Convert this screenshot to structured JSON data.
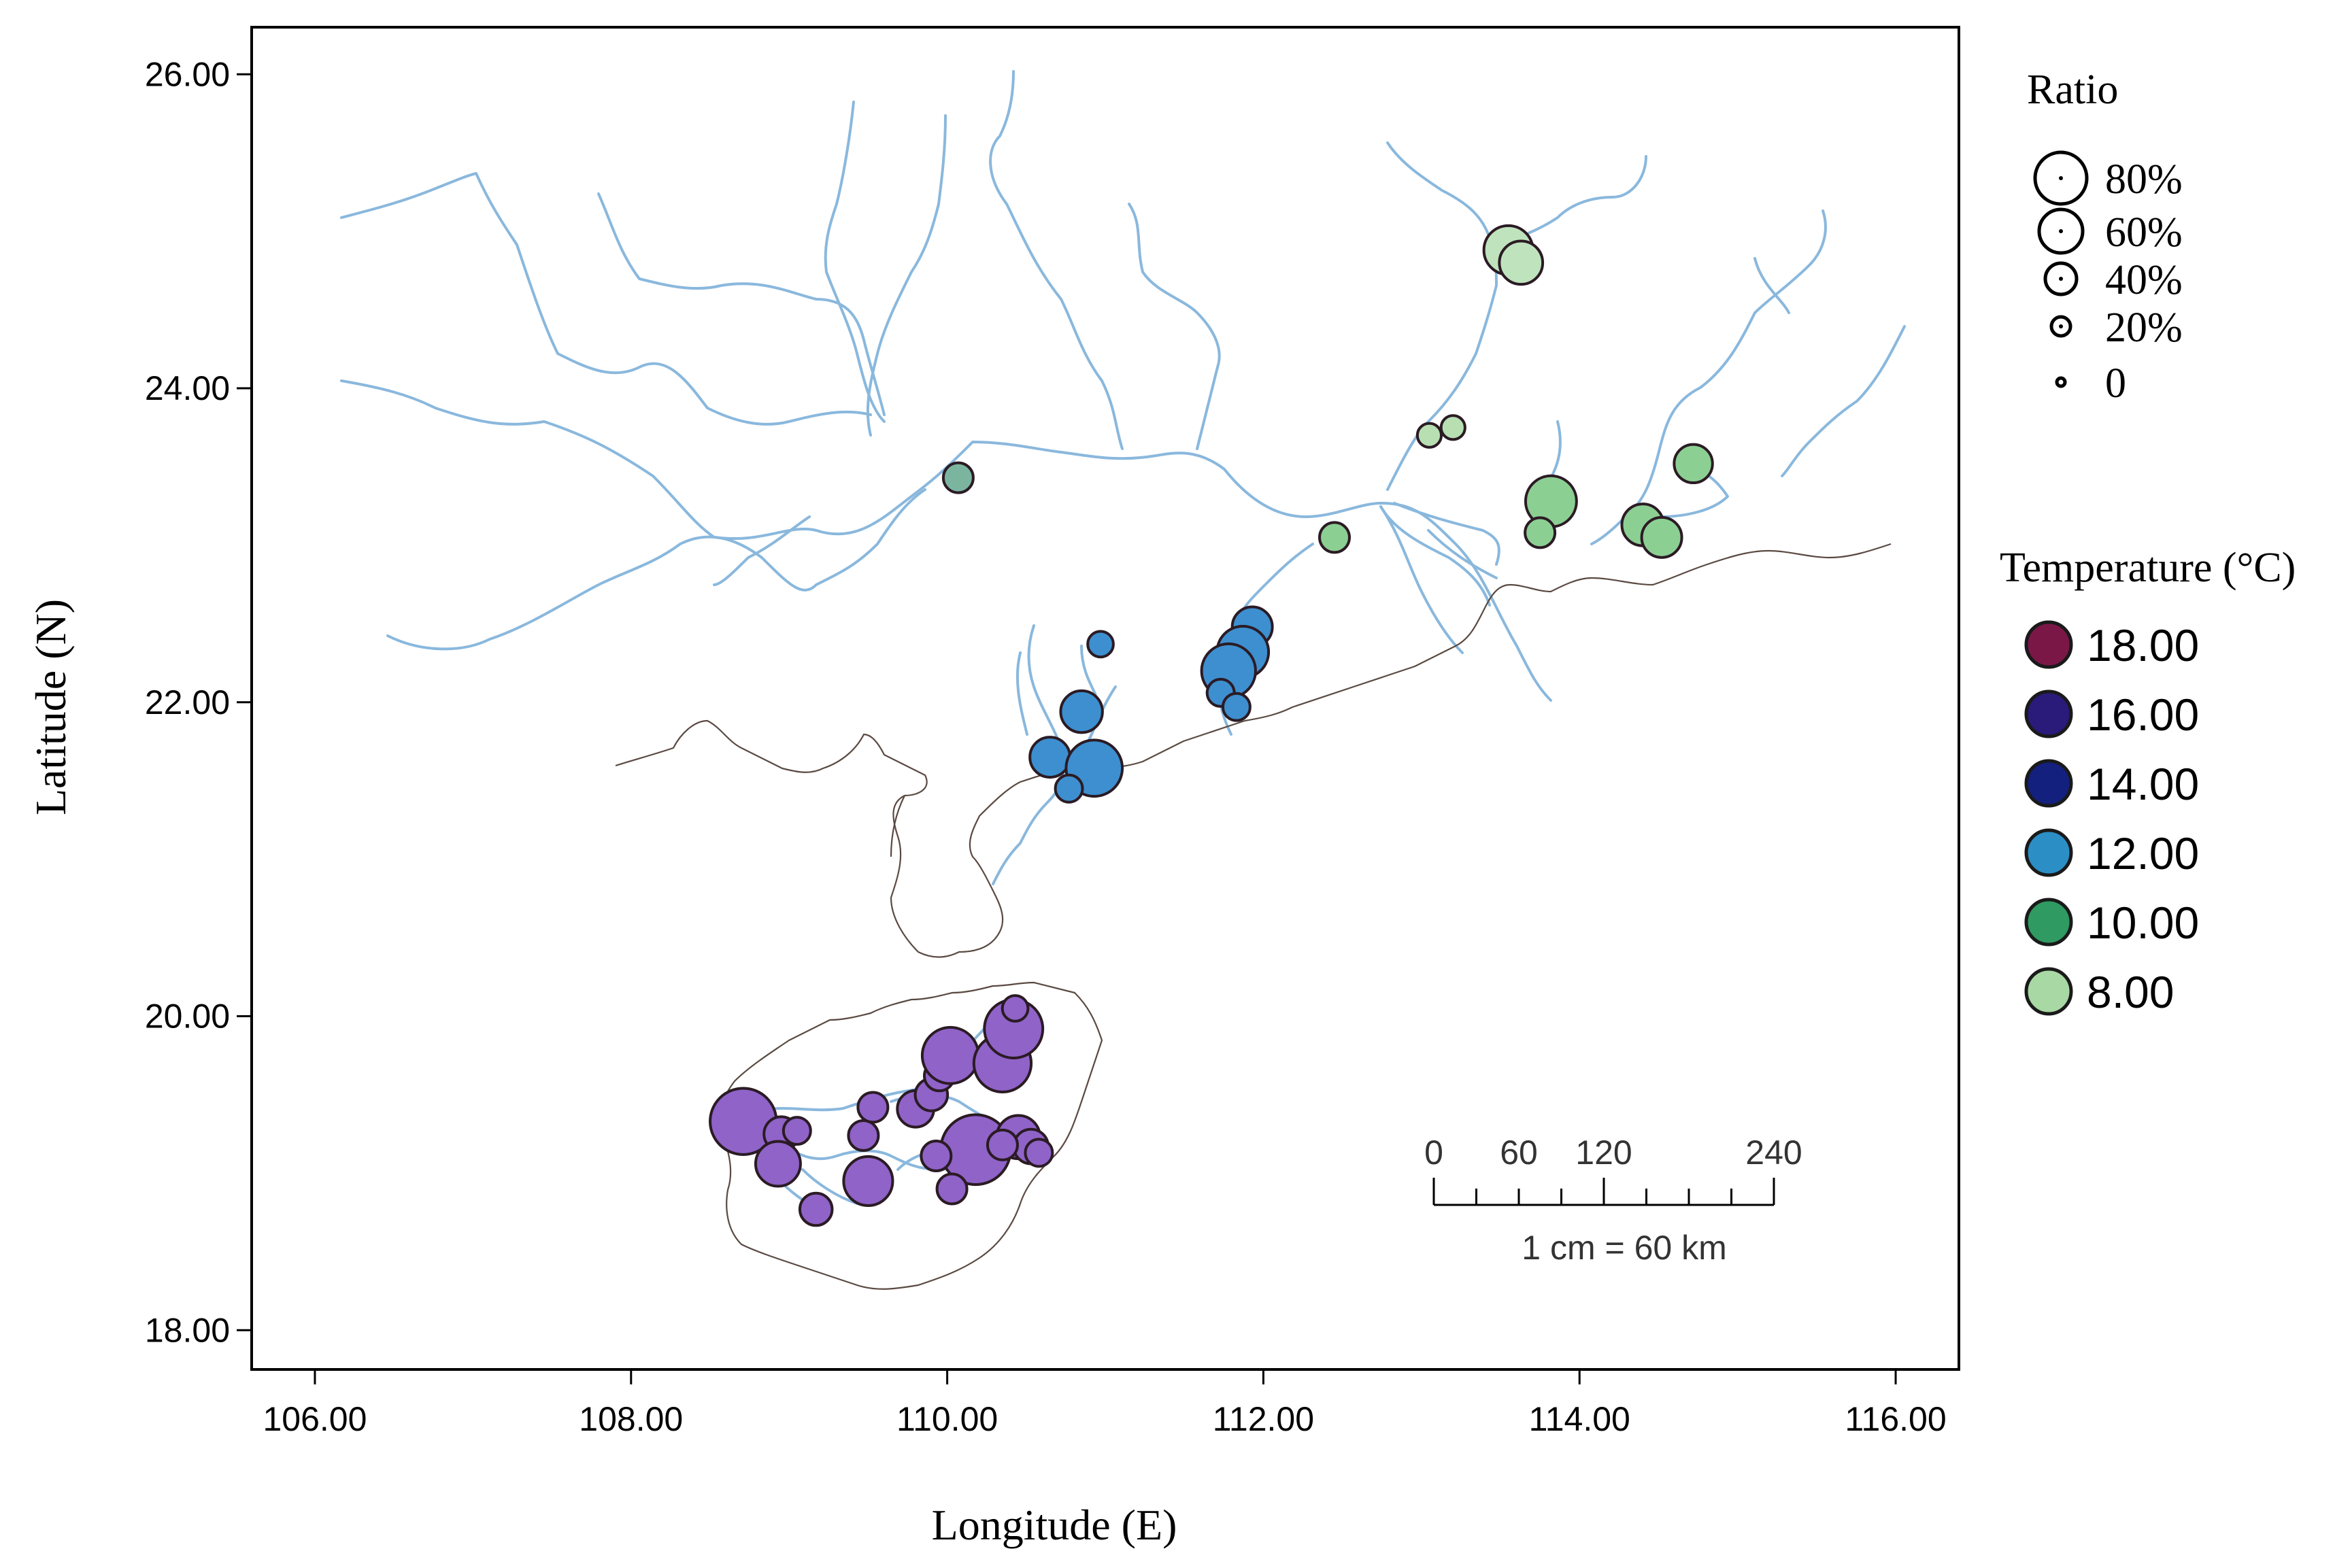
{
  "chart_data": {
    "type": "map-bubble",
    "xlabel": "Longitude (E)",
    "ylabel": "Latitude (N)",
    "xlim": [
      105.6,
      116.4
    ],
    "ylim": [
      17.75,
      26.3
    ],
    "x_ticks": [
      106.0,
      108.0,
      110.0,
      112.0,
      114.0,
      116.0
    ],
    "x_tick_labels": [
      "106.00",
      "108.00",
      "110.00",
      "112.00",
      "114.00",
      "116.00"
    ],
    "y_ticks": [
      18.0,
      20.0,
      22.0,
      24.0,
      26.0
    ],
    "y_tick_labels": [
      "18.00",
      "20.00",
      "22.00",
      "24.00",
      "26.00"
    ],
    "legend_ratio": {
      "title": "Ratio",
      "items": [
        {
          "label": "80%",
          "value": 80
        },
        {
          "label": "60%",
          "value": 60
        },
        {
          "label": "40%",
          "value": 40
        },
        {
          "label": "20%",
          "value": 20
        },
        {
          "label": "0",
          "value": 0
        }
      ]
    },
    "legend_temperature": {
      "title": "Temperature (°C)",
      "items": [
        {
          "label": "18.00",
          "color": "#7a1747"
        },
        {
          "label": "16.00",
          "color": "#2a1a7a"
        },
        {
          "label": "14.00",
          "color": "#14207e"
        },
        {
          "label": "12.00",
          "color": "#2b8fc6"
        },
        {
          "label": "10.00",
          "color": "#2f9a62"
        },
        {
          "label": "8.00",
          "color": "#a8d8a4"
        }
      ]
    },
    "scale_bar": {
      "labels": [
        "0",
        "60",
        "120",
        "240"
      ],
      "values_km": [
        0,
        60,
        120,
        240
      ],
      "note": "1 cm = 60 km"
    },
    "sites": [
      {
        "lon": 113.55,
        "lat": 24.88,
        "ratio": 30,
        "color": "#bfe3bd"
      },
      {
        "lon": 113.63,
        "lat": 24.8,
        "ratio": 22,
        "color": "#bfe3bd"
      },
      {
        "lon": 113.05,
        "lat": 23.7,
        "ratio": 4,
        "color": "#b7dfb2"
      },
      {
        "lon": 113.2,
        "lat": 23.75,
        "ratio": 4,
        "color": "#b7dfb2"
      },
      {
        "lon": 113.82,
        "lat": 23.28,
        "ratio": 33,
        "color": "#8ccf93"
      },
      {
        "lon": 113.75,
        "lat": 23.08,
        "ratio": 8,
        "color": "#8ccf93"
      },
      {
        "lon": 114.72,
        "lat": 23.52,
        "ratio": 16,
        "color": "#8ccf93"
      },
      {
        "lon": 114.4,
        "lat": 23.13,
        "ratio": 20,
        "color": "#8ccf93"
      },
      {
        "lon": 114.52,
        "lat": 23.05,
        "ratio": 18,
        "color": "#8ccf93"
      },
      {
        "lon": 112.45,
        "lat": 23.05,
        "ratio": 8,
        "color": "#8ccf93"
      },
      {
        "lon": 110.07,
        "lat": 23.43,
        "ratio": 8,
        "color": "#7bb5a0"
      },
      {
        "lon": 111.93,
        "lat": 22.48,
        "ratio": 18,
        "color": "#3d8fd0"
      },
      {
        "lon": 111.87,
        "lat": 22.32,
        "ratio": 34,
        "color": "#3d8fd0"
      },
      {
        "lon": 111.78,
        "lat": 22.2,
        "ratio": 38,
        "color": "#3d8fd0"
      },
      {
        "lon": 111.73,
        "lat": 22.06,
        "ratio": 6,
        "color": "#3d8fd0"
      },
      {
        "lon": 111.83,
        "lat": 21.97,
        "ratio": 6,
        "color": "#3d8fd0"
      },
      {
        "lon": 110.97,
        "lat": 22.37,
        "ratio": 5,
        "color": "#3d8fd0"
      },
      {
        "lon": 110.85,
        "lat": 21.94,
        "ratio": 20,
        "color": "#3d8fd0"
      },
      {
        "lon": 110.65,
        "lat": 21.65,
        "ratio": 18,
        "color": "#3d8fd0"
      },
      {
        "lon": 110.93,
        "lat": 21.58,
        "ratio": 42,
        "color": "#3d8fd0"
      },
      {
        "lon": 110.77,
        "lat": 21.45,
        "ratio": 6,
        "color": "#3d8fd0"
      },
      {
        "lon": 108.71,
        "lat": 19.33,
        "ratio": 62,
        "color": "#8f63c8"
      },
      {
        "lon": 108.95,
        "lat": 19.25,
        "ratio": 12,
        "color": "#8f63c8"
      },
      {
        "lon": 109.05,
        "lat": 19.27,
        "ratio": 6,
        "color": "#8f63c8"
      },
      {
        "lon": 108.93,
        "lat": 19.06,
        "ratio": 24,
        "color": "#8f63c8"
      },
      {
        "lon": 109.17,
        "lat": 18.77,
        "ratio": 10,
        "color": "#8f63c8"
      },
      {
        "lon": 109.5,
        "lat": 18.95,
        "ratio": 30,
        "color": "#8f63c8"
      },
      {
        "lon": 109.47,
        "lat": 19.24,
        "ratio": 8,
        "color": "#8f63c8"
      },
      {
        "lon": 109.53,
        "lat": 19.42,
        "ratio": 8,
        "color": "#8f63c8"
      },
      {
        "lon": 109.8,
        "lat": 19.41,
        "ratio": 14,
        "color": "#8f63c8"
      },
      {
        "lon": 109.9,
        "lat": 19.5,
        "ratio": 10,
        "color": "#8f63c8"
      },
      {
        "lon": 109.95,
        "lat": 19.62,
        "ratio": 8,
        "color": "#8f63c8"
      },
      {
        "lon": 110.02,
        "lat": 19.75,
        "ratio": 42,
        "color": "#8f63c8"
      },
      {
        "lon": 110.35,
        "lat": 19.7,
        "ratio": 44,
        "color": "#8f63c8"
      },
      {
        "lon": 110.42,
        "lat": 19.92,
        "ratio": 46,
        "color": "#8f63c8"
      },
      {
        "lon": 110.43,
        "lat": 20.05,
        "ratio": 5,
        "color": "#8f63c8"
      },
      {
        "lon": 110.18,
        "lat": 19.15,
        "ratio": 70,
        "color": "#8f63c8"
      },
      {
        "lon": 110.45,
        "lat": 19.23,
        "ratio": 22,
        "color": "#8f63c8"
      },
      {
        "lon": 110.53,
        "lat": 19.17,
        "ratio": 12,
        "color": "#8f63c8"
      },
      {
        "lon": 110.35,
        "lat": 19.18,
        "ratio": 8,
        "color": "#8f63c8"
      },
      {
        "lon": 109.93,
        "lat": 19.11,
        "ratio": 8,
        "color": "#8f63c8"
      },
      {
        "lon": 110.03,
        "lat": 18.9,
        "ratio": 8,
        "color": "#8f63c8"
      },
      {
        "lon": 110.58,
        "lat": 19.13,
        "ratio": 6,
        "color": "#8f63c8"
      }
    ]
  }
}
